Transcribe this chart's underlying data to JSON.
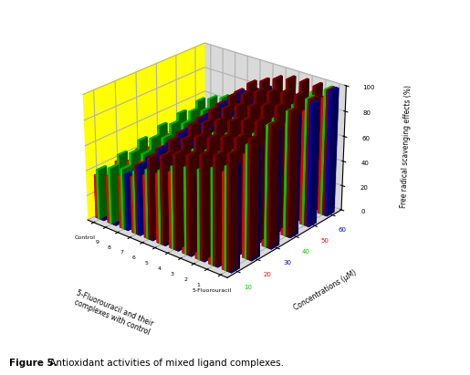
{
  "xlabel": "5-Fluorouracil and their\ncomplexes with control",
  "ylabel": "Concentrations (μM)",
  "zlabel": "Free radical scavenging effects (%)",
  "caption_bold": "Figure 5.",
  "caption_rest": " Antioxidant activities of mixed ligand complexes.",
  "x_categories": [
    "Control",
    "9",
    "8",
    "7",
    "6",
    "5",
    "4",
    "3",
    "2",
    "1",
    "5-Fluorouracil"
  ],
  "y_categories": [
    "10",
    "20",
    "30",
    "40",
    "50",
    "60"
  ],
  "y_values": [
    10,
    20,
    30,
    40,
    50,
    60
  ],
  "zlim": [
    0,
    100
  ],
  "bar_colors": [
    "#ff0000",
    "#00dd00",
    "#8b0000",
    "#0000cc"
  ],
  "bar_width": 0.18,
  "bar_depth": 0.42,
  "conc_data": {
    "red": [
      [
        35,
        38,
        40,
        42,
        45,
        48
      ],
      [
        38,
        42,
        45,
        48,
        50,
        52
      ],
      [
        42,
        46,
        50,
        52,
        55,
        58
      ],
      [
        45,
        50,
        54,
        57,
        60,
        63
      ],
      [
        50,
        54,
        58,
        62,
        65,
        68
      ],
      [
        55,
        60,
        63,
        66,
        70,
        73
      ],
      [
        60,
        65,
        68,
        72,
        75,
        78
      ],
      [
        62,
        67,
        70,
        74,
        77,
        80
      ],
      [
        65,
        70,
        73,
        77,
        80,
        83
      ],
      [
        70,
        75,
        78,
        82,
        85,
        88
      ],
      [
        75,
        80,
        83,
        87,
        90,
        93
      ]
    ],
    "green": [
      [
        40,
        44,
        48,
        52,
        55,
        58
      ],
      [
        45,
        49,
        53,
        57,
        60,
        63
      ],
      [
        48,
        52,
        57,
        61,
        64,
        67
      ],
      [
        50,
        55,
        60,
        64,
        67,
        70
      ],
      [
        55,
        60,
        65,
        69,
        72,
        75
      ],
      [
        58,
        63,
        68,
        72,
        75,
        78
      ],
      [
        65,
        70,
        75,
        79,
        82,
        85
      ],
      [
        68,
        73,
        78,
        82,
        85,
        88
      ],
      [
        70,
        75,
        80,
        84,
        87,
        90
      ],
      [
        75,
        80,
        85,
        89,
        92,
        95
      ],
      [
        80,
        88,
        95,
        98,
        100,
        100
      ]
    ],
    "darkred": [
      [
        30,
        34,
        38,
        42,
        45,
        48
      ],
      [
        35,
        40,
        44,
        48,
        52,
        55
      ],
      [
        40,
        45,
        50,
        54,
        58,
        62
      ],
      [
        55,
        60,
        65,
        69,
        73,
        76
      ],
      [
        65,
        70,
        75,
        79,
        83,
        86
      ],
      [
        70,
        75,
        80,
        84,
        88,
        91
      ],
      [
        75,
        80,
        85,
        89,
        93,
        96
      ],
      [
        78,
        83,
        88,
        92,
        96,
        99
      ],
      [
        82,
        87,
        92,
        96,
        99,
        100
      ],
      [
        85,
        90,
        95,
        99,
        100,
        100
      ],
      [
        90,
        93,
        96,
        99,
        100,
        100
      ]
    ],
    "blue": [
      [
        28,
        32,
        36,
        40,
        43,
        46
      ],
      [
        33,
        38,
        42,
        46,
        49,
        52
      ],
      [
        45,
        50,
        54,
        58,
        62,
        65
      ],
      [
        55,
        60,
        64,
        68,
        72,
        75
      ],
      [
        60,
        65,
        70,
        74,
        77,
        80
      ],
      [
        65,
        70,
        75,
        79,
        82,
        85
      ],
      [
        55,
        60,
        65,
        69,
        73,
        76
      ],
      [
        60,
        65,
        70,
        74,
        77,
        80
      ],
      [
        65,
        70,
        75,
        79,
        82,
        85
      ],
      [
        70,
        75,
        80,
        84,
        87,
        90
      ],
      [
        80,
        85,
        90,
        94,
        97,
        100
      ]
    ]
  },
  "background_color": "#ffffff",
  "floor_color": [
    1.0,
    1.0,
    0.0,
    1.0
  ],
  "wall_color": [
    0.85,
    0.85,
    0.85,
    1.0
  ],
  "y_tick_colors": [
    "#00cc00",
    "#ff0000",
    "#0000cc",
    "#00cc00",
    "#ff0000",
    "#0000cc"
  ],
  "elev": 25,
  "azim": -50
}
